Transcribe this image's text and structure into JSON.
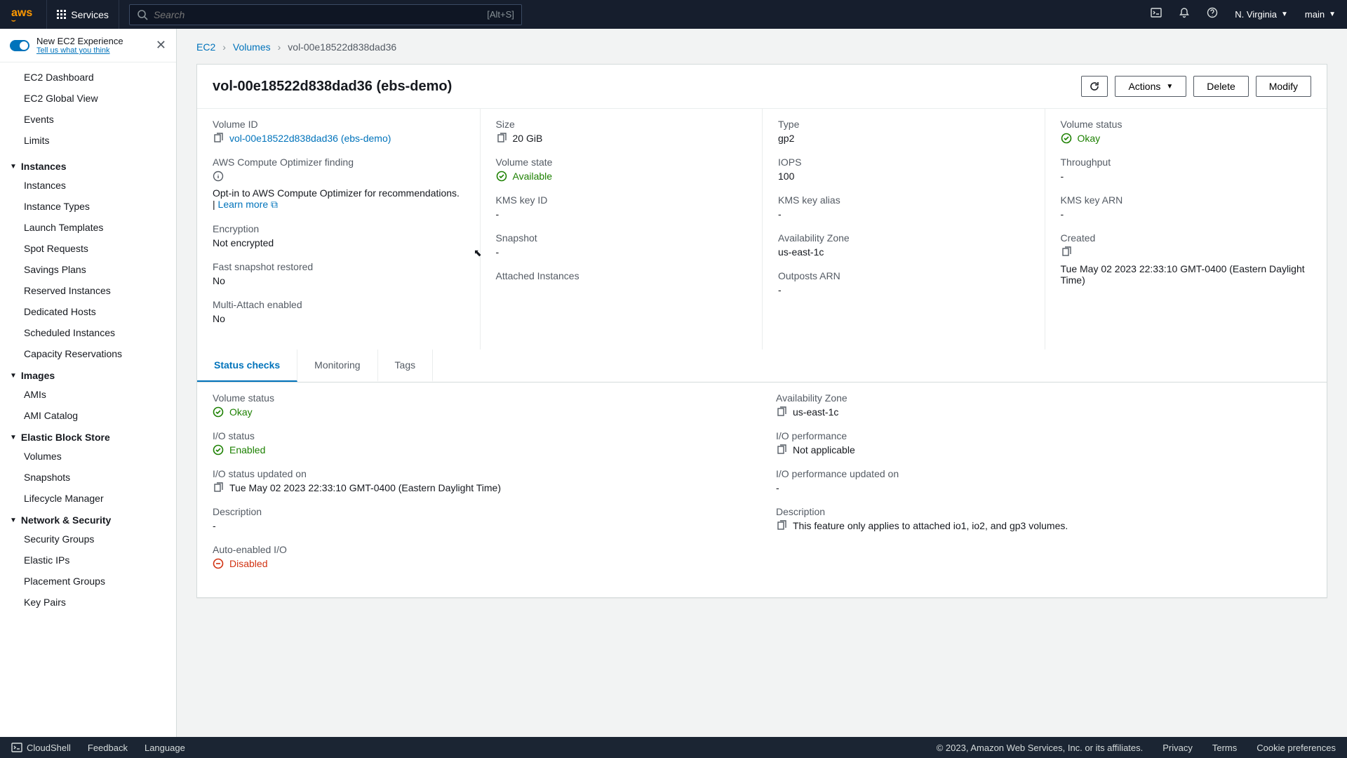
{
  "topnav": {
    "services": "Services",
    "search_placeholder": "Search",
    "search_kbd": "[Alt+S]",
    "region": "N. Virginia",
    "account": "main"
  },
  "sidebar": {
    "experience_title": "New EC2 Experience",
    "experience_sub": "Tell us what you think",
    "top_items": [
      "EC2 Dashboard",
      "EC2 Global View",
      "Events",
      "Limits"
    ],
    "groups": [
      {
        "title": "Instances",
        "items": [
          "Instances",
          "Instance Types",
          "Launch Templates",
          "Spot Requests",
          "Savings Plans",
          "Reserved Instances",
          "Dedicated Hosts",
          "Scheduled Instances",
          "Capacity Reservations"
        ]
      },
      {
        "title": "Images",
        "items": [
          "AMIs",
          "AMI Catalog"
        ]
      },
      {
        "title": "Elastic Block Store",
        "items": [
          "Volumes",
          "Snapshots",
          "Lifecycle Manager"
        ]
      },
      {
        "title": "Network & Security",
        "items": [
          "Security Groups",
          "Elastic IPs",
          "Placement Groups",
          "Key Pairs"
        ]
      }
    ]
  },
  "breadcrumb": {
    "l0": "EC2",
    "l1": "Volumes",
    "l2": "vol-00e18522d838dad36"
  },
  "header": {
    "title": "vol-00e18522d838dad36 (ebs-demo)",
    "actions": "Actions",
    "delete": "Delete",
    "modify": "Modify"
  },
  "details": {
    "volume_id": {
      "label": "Volume ID",
      "value": "vol-00e18522d838dad36 (ebs-demo)"
    },
    "size": {
      "label": "Size",
      "value": "20 GiB"
    },
    "type": {
      "label": "Type",
      "value": "gp2"
    },
    "volume_status": {
      "label": "Volume status",
      "value": "Okay"
    },
    "optimizer": {
      "label": "AWS Compute Optimizer finding",
      "value": "Opt-in to AWS Compute Optimizer for recommendations. | ",
      "learn": "Learn more"
    },
    "volume_state": {
      "label": "Volume state",
      "value": "Available"
    },
    "iops": {
      "label": "IOPS",
      "value": "100"
    },
    "throughput": {
      "label": "Throughput",
      "value": "-"
    },
    "encryption": {
      "label": "Encryption",
      "value": "Not encrypted"
    },
    "kms_id": {
      "label": "KMS key ID",
      "value": "-"
    },
    "kms_alias": {
      "label": "KMS key alias",
      "value": "-"
    },
    "kms_arn": {
      "label": "KMS key ARN",
      "value": "-"
    },
    "fsr": {
      "label": "Fast snapshot restored",
      "value": "No"
    },
    "snapshot": {
      "label": "Snapshot",
      "value": "-"
    },
    "az": {
      "label": "Availability Zone",
      "value": "us-east-1c"
    },
    "created": {
      "label": "Created",
      "value": "Tue May 02 2023 22:33:10 GMT-0400 (Eastern Daylight Time)"
    },
    "multi_attach": {
      "label": "Multi-Attach enabled",
      "value": "No"
    },
    "attached": {
      "label": "Attached Instances",
      "value": ""
    },
    "outposts": {
      "label": "Outposts ARN",
      "value": "-"
    }
  },
  "tabs": {
    "t0": "Status checks",
    "t1": "Monitoring",
    "t2": "Tags"
  },
  "status": {
    "vol_status": {
      "label": "Volume status",
      "value": "Okay"
    },
    "az": {
      "label": "Availability Zone",
      "value": "us-east-1c"
    },
    "io_status": {
      "label": "I/O status",
      "value": "Enabled"
    },
    "io_perf": {
      "label": "I/O performance",
      "value": "Not applicable"
    },
    "io_updated": {
      "label": "I/O status updated on",
      "value": "Tue May 02 2023 22:33:10 GMT-0400 (Eastern Daylight Time)"
    },
    "io_perf_updated": {
      "label": "I/O performance updated on",
      "value": "-"
    },
    "desc_l": {
      "label": "Description",
      "value": "-"
    },
    "desc_r": {
      "label": "Description",
      "value": "This feature only applies to attached io1, io2, and gp3 volumes."
    },
    "auto_io": {
      "label": "Auto-enabled I/O",
      "value": "Disabled"
    }
  },
  "footer": {
    "cloudshell": "CloudShell",
    "feedback": "Feedback",
    "language": "Language",
    "copyright": "© 2023, Amazon Web Services, Inc. or its affiliates.",
    "privacy": "Privacy",
    "terms": "Terms",
    "cookies": "Cookie preferences"
  }
}
